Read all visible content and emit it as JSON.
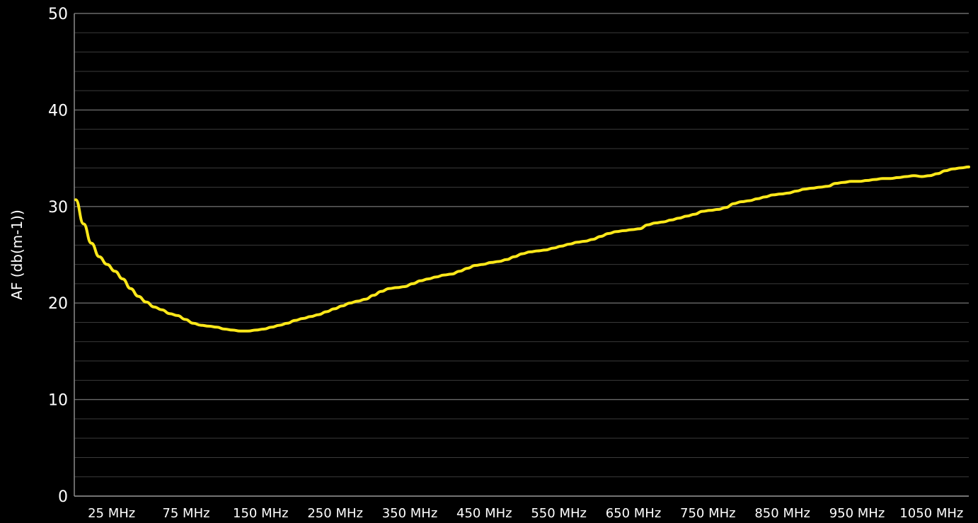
{
  "chart_data": {
    "type": "line",
    "title": "",
    "xlabel": "",
    "ylabel": "AF (db(m-1))",
    "ylim": [
      0,
      50
    ],
    "y_ticks": [
      0,
      10,
      20,
      30,
      40,
      50
    ],
    "x_tick_labels": [
      "25 MHz",
      "75 MHz",
      "150 MHz",
      "250 MHz",
      "350 MHz",
      "450 MHz",
      "550 MHz",
      "650 MHz",
      "750 MHz",
      "850 MHz",
      "950 MHz",
      "1050 MHz"
    ],
    "grid": true,
    "minor_grid_per_major": 5,
    "line_color": "#FFE81A",
    "background_color": "#000000",
    "major_grid_color": "#6a6a6a",
    "minor_grid_color": "#3a3a3a",
    "series": [
      {
        "values": [
          30.7,
          28.2,
          26.2,
          24.8,
          24.0,
          23.3,
          22.5,
          21.5,
          20.7,
          20.1,
          19.6,
          19.3,
          18.9,
          18.7,
          18.3,
          17.9,
          17.7,
          17.6,
          17.5,
          17.3,
          17.2,
          17.1,
          17.1,
          17.2,
          17.3,
          17.5,
          17.7,
          17.9,
          18.2,
          18.4,
          18.6,
          18.8,
          19.1,
          19.4,
          19.7,
          20.0,
          20.2,
          20.4,
          20.8,
          21.2,
          21.5,
          21.6,
          21.7,
          22.0,
          22.3,
          22.5,
          22.7,
          22.9,
          23.0,
          23.3,
          23.6,
          23.9,
          24.0,
          24.2,
          24.3,
          24.5,
          24.8,
          25.1,
          25.3,
          25.4,
          25.5,
          25.7,
          25.9,
          26.1,
          26.3,
          26.4,
          26.6,
          26.9,
          27.2,
          27.4,
          27.5,
          27.6,
          27.7,
          28.1,
          28.3,
          28.4,
          28.6,
          28.8,
          29.0,
          29.2,
          29.5,
          29.6,
          29.7,
          29.9,
          30.3,
          30.5,
          30.6,
          30.8,
          31.0,
          31.2,
          31.3,
          31.4,
          31.6,
          31.8,
          31.9,
          32.0,
          32.1,
          32.4,
          32.5,
          32.6,
          32.6,
          32.7,
          32.8,
          32.9,
          32.9,
          33.0,
          33.1,
          33.2,
          33.1,
          33.2,
          33.4,
          33.7,
          33.9,
          34.0,
          34.1
        ]
      }
    ]
  }
}
